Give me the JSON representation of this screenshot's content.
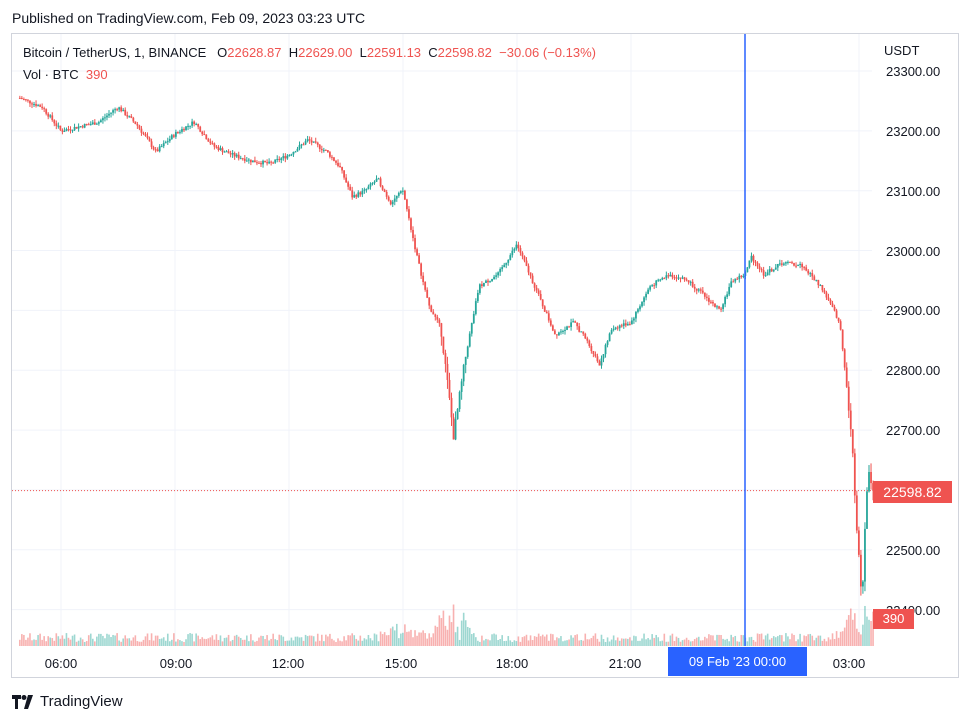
{
  "header": {
    "published": "Published on TradingView.com, Feb 09, 2023 03:23 UTC"
  },
  "legend": {
    "symbol": "Bitcoin / TetherUS, 1, BINANCE",
    "open_label": "O",
    "open": "22628.87",
    "high_label": "H",
    "high": "22629.00",
    "low_label": "L",
    "low": "22591.13",
    "close_label": "C",
    "close": "22598.82",
    "change": "−30.06 (−0.13%)"
  },
  "volume_legend": {
    "label": "Vol · BTC",
    "value": "390"
  },
  "price_axis": {
    "currency": "USDT",
    "ticks": [
      "23300.00",
      "23200.00",
      "23100.00",
      "23000.00",
      "22900.00",
      "22800.00",
      "22700.00",
      "22500.00",
      "22400.00"
    ],
    "last_price": "22598.82",
    "volume_tag": "390"
  },
  "time_axis": {
    "ticks": [
      "06:00",
      "09:00",
      "12:00",
      "15:00",
      "18:00",
      "21:00",
      "03:00"
    ],
    "crosshair_label": "09 Feb '23   00:00"
  },
  "footer": {
    "brand": "TradingView"
  },
  "colors": {
    "up": "#26a69a",
    "down": "#ef5350",
    "crosshair": "#2962ff",
    "grid": "#f0f3fa"
  },
  "chart_data": {
    "type": "candlestick",
    "title": "Bitcoin / TetherUS, 1, BINANCE",
    "interval": "1 minute",
    "ylim": [
      22340,
      23330
    ],
    "x_range": [
      "2023-02-08 04:55",
      "2023-02-09 03:23"
    ],
    "last_price": 22598.82,
    "crosshair_time": "2023-02-09 00:00",
    "price_path": [
      [
        "04:55",
        23255
      ],
      [
        "05:30",
        23240
      ],
      [
        "06:00",
        23200
      ],
      [
        "07:00",
        23215
      ],
      [
        "07:30",
        23240
      ],
      [
        "08:00",
        23210
      ],
      [
        "08:30",
        23165
      ],
      [
        "09:00",
        23195
      ],
      [
        "09:30",
        23215
      ],
      [
        "10:00",
        23175
      ],
      [
        "10:30",
        23160
      ],
      [
        "11:00",
        23150
      ],
      [
        "11:30",
        23145
      ],
      [
        "12:00",
        23160
      ],
      [
        "12:30",
        23185
      ],
      [
        "13:00",
        23165
      ],
      [
        "13:20",
        23140
      ],
      [
        "13:40",
        23090
      ],
      [
        "14:00",
        23100
      ],
      [
        "14:20",
        23120
      ],
      [
        "14:40",
        23080
      ],
      [
        "15:00",
        23100
      ],
      [
        "15:20",
        23000
      ],
      [
        "15:40",
        22910
      ],
      [
        "16:00",
        22870
      ],
      [
        "16:10",
        22780
      ],
      [
        "16:20",
        22690
      ],
      [
        "16:40",
        22830
      ],
      [
        "17:00",
        22940
      ],
      [
        "17:30",
        22960
      ],
      [
        "18:00",
        23010
      ],
      [
        "18:20",
        22960
      ],
      [
        "18:40",
        22910
      ],
      [
        "19:00",
        22860
      ],
      [
        "19:30",
        22880
      ],
      [
        "19:50",
        22850
      ],
      [
        "20:10",
        22810
      ],
      [
        "20:30",
        22870
      ],
      [
        "21:00",
        22880
      ],
      [
        "21:30",
        22940
      ],
      [
        "22:00",
        22960
      ],
      [
        "22:30",
        22950
      ],
      [
        "23:00",
        22920
      ],
      [
        "23:20",
        22900
      ],
      [
        "23:40",
        22950
      ],
      [
        "00:00",
        22960
      ],
      [
        "00:10",
        22990
      ],
      [
        "00:30",
        22960
      ],
      [
        "01:00",
        22980
      ],
      [
        "01:30",
        22975
      ],
      [
        "02:00",
        22940
      ],
      [
        "02:20",
        22900
      ],
      [
        "02:30",
        22880
      ],
      [
        "02:40",
        22780
      ],
      [
        "02:50",
        22660
      ],
      [
        "03:00",
        22480
      ],
      [
        "03:05",
        22420
      ],
      [
        "03:10",
        22560
      ],
      [
        "03:15",
        22640
      ],
      [
        "03:23",
        22598.82
      ]
    ],
    "volume": {
      "label": "Vol · BTC",
      "last": 390,
      "notable_spikes": [
        [
          "15:00",
          "high"
        ],
        [
          "16:15",
          "high"
        ],
        [
          "03:00",
          "high"
        ]
      ]
    }
  }
}
